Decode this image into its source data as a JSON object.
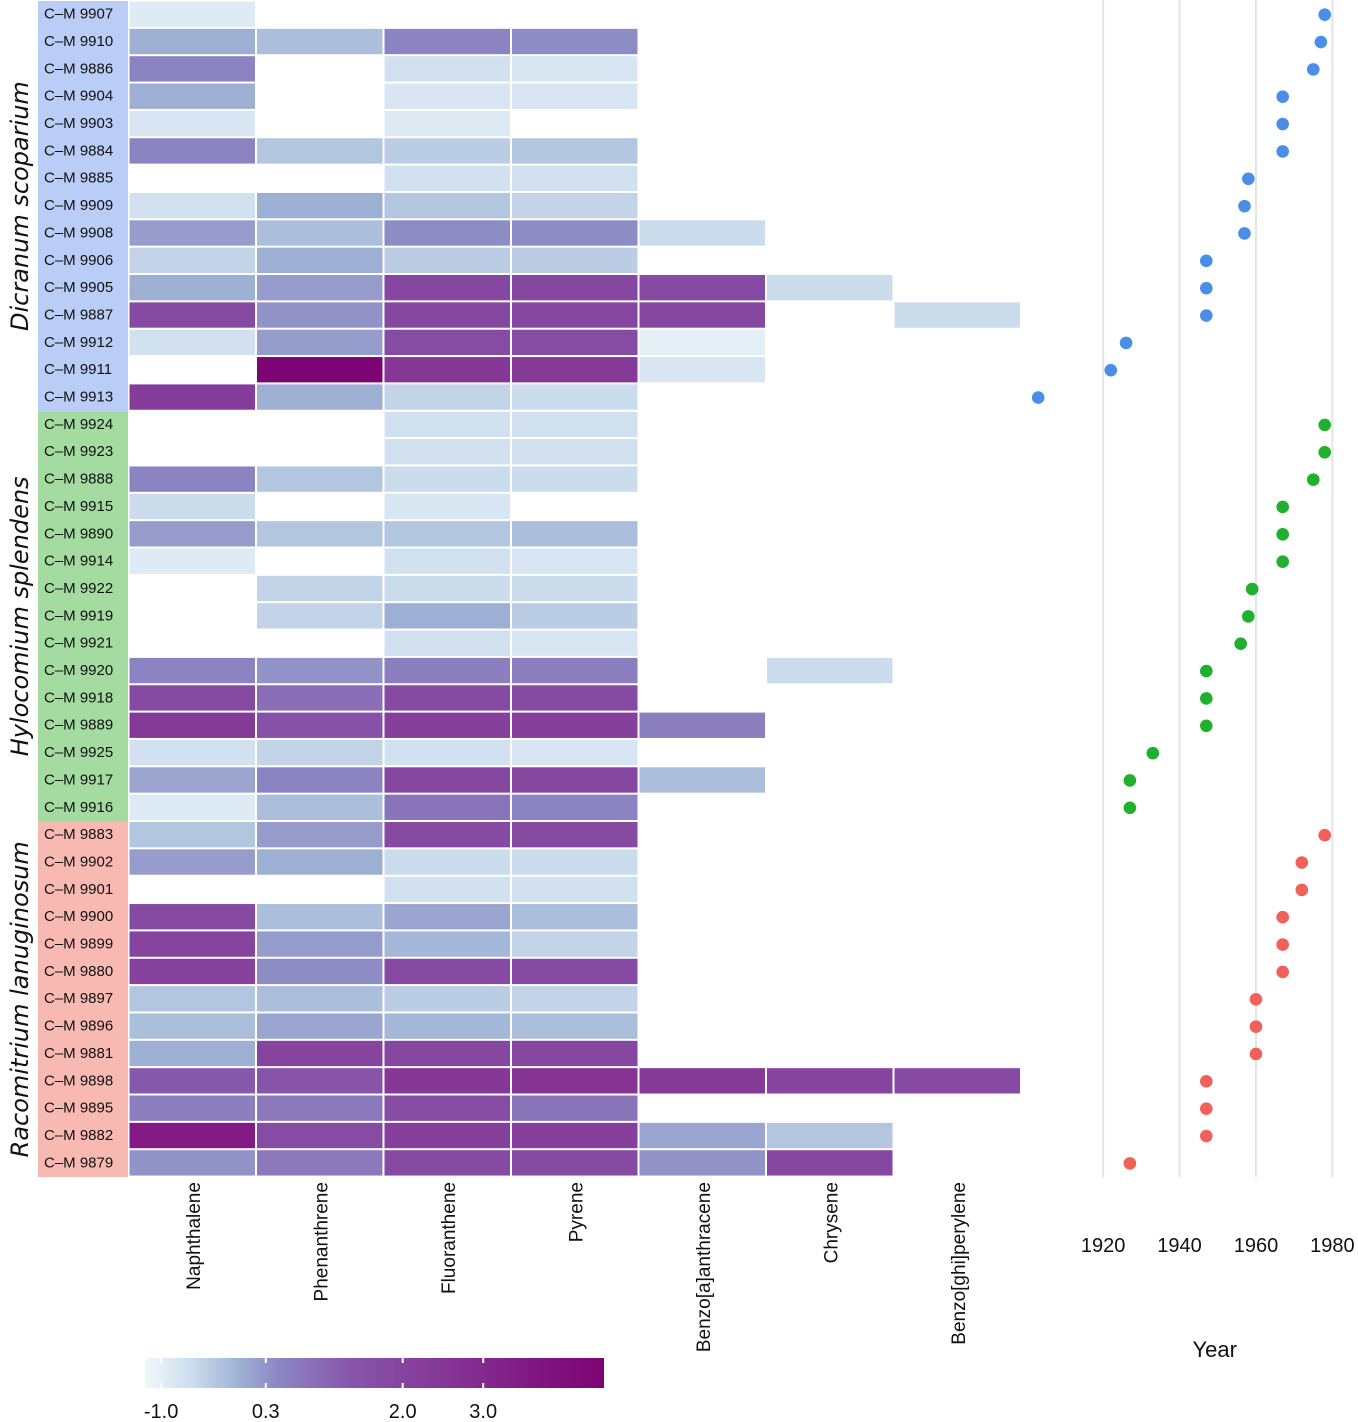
{
  "chart_data": {
    "type": "heatmap",
    "title": "",
    "compounds": [
      "Naphthalene",
      "Phenanthrene",
      "Fluoranthene",
      "Pyrene",
      "Benzo[a]anthracene",
      "Chrysene",
      "Benzo[ghi]perylene"
    ],
    "species": [
      {
        "name": "Dicranum scoparium",
        "color": "#b9cdf7",
        "dot_color": "#4a8ee8"
      },
      {
        "name": "Hylocomium splendens",
        "color": "#a3dba0",
        "dot_color": "#1fb02e"
      },
      {
        "name": "Racomitrium lanuginosum",
        "color": "#f8b9b3",
        "dot_color": "#ef6159"
      }
    ],
    "samples": [
      {
        "id": "C–M 9907",
        "species": 0,
        "year": 1978,
        "values": [
          -0.9,
          null,
          null,
          null,
          null,
          null,
          null
        ]
      },
      {
        "id": "C–M 9910",
        "species": 0,
        "year": 1977,
        "values": [
          0.0,
          -0.2,
          0.5,
          0.4,
          null,
          null,
          null
        ]
      },
      {
        "id": "C–M 9886",
        "species": 0,
        "year": 1975,
        "values": [
          0.5,
          null,
          -0.7,
          -0.8,
          null,
          null,
          null
        ]
      },
      {
        "id": "C–M 9904",
        "species": 0,
        "year": 1967,
        "values": [
          0.0,
          null,
          -0.8,
          -0.8,
          null,
          null,
          null
        ]
      },
      {
        "id": "C–M 9903",
        "species": 0,
        "year": 1967,
        "values": [
          -0.8,
          null,
          -0.9,
          null,
          null,
          null,
          null
        ]
      },
      {
        "id": "C–M 9884",
        "species": 0,
        "year": 1967,
        "values": [
          0.5,
          -0.3,
          -0.4,
          -0.3,
          null,
          null,
          null
        ]
      },
      {
        "id": "C–M 9885",
        "species": 0,
        "year": 1958,
        "values": [
          null,
          null,
          -0.7,
          -0.7,
          null,
          null,
          null
        ]
      },
      {
        "id": "C–M 9909",
        "species": 0,
        "year": 1957,
        "values": [
          -0.7,
          0.0,
          -0.3,
          -0.5,
          null,
          null,
          null
        ]
      },
      {
        "id": "C–M 9908",
        "species": 0,
        "year": 1957,
        "values": [
          0.2,
          -0.2,
          0.4,
          0.4,
          -0.6,
          null,
          null
        ]
      },
      {
        "id": "C–M 9906",
        "species": 0,
        "year": 1947,
        "values": [
          -0.5,
          0.0,
          -0.4,
          -0.4,
          null,
          null,
          null
        ]
      },
      {
        "id": "C–M 9905",
        "species": 0,
        "year": 1947,
        "values": [
          0.0,
          0.2,
          1.9,
          1.9,
          1.8,
          -0.6,
          null
        ]
      },
      {
        "id": "C–M 9887",
        "species": 0,
        "year": 1947,
        "values": [
          1.8,
          0.3,
          1.9,
          1.9,
          1.9,
          null,
          -0.6
        ]
      },
      {
        "id": "C–M 9912",
        "species": 0,
        "year": 1926,
        "values": [
          -0.7,
          0.2,
          1.7,
          1.7,
          -1.0,
          null,
          null
        ]
      },
      {
        "id": "C–M 9911",
        "species": 0,
        "year": 1922,
        "values": [
          null,
          4.5,
          2.5,
          2.4,
          -0.8,
          null,
          null
        ]
      },
      {
        "id": "C–M 9913",
        "species": 0,
        "year": 1903,
        "values": [
          2.3,
          0.0,
          -0.5,
          -0.6,
          null,
          null,
          null
        ]
      },
      {
        "id": "C–M 9924",
        "species": 1,
        "year": 1978,
        "values": [
          null,
          null,
          -0.7,
          -0.7,
          null,
          null,
          null
        ]
      },
      {
        "id": "C–M 9923",
        "species": 1,
        "year": 1978,
        "values": [
          null,
          null,
          -0.7,
          -0.7,
          null,
          null,
          null
        ]
      },
      {
        "id": "C–M 9888",
        "species": 1,
        "year": 1975,
        "values": [
          0.5,
          -0.3,
          -0.6,
          -0.6,
          null,
          null,
          null
        ]
      },
      {
        "id": "C–M 9915",
        "species": 1,
        "year": 1967,
        "values": [
          -0.6,
          null,
          -0.8,
          null,
          null,
          null,
          null
        ]
      },
      {
        "id": "C–M 9890",
        "species": 1,
        "year": 1967,
        "values": [
          0.2,
          -0.3,
          -0.3,
          -0.2,
          null,
          null,
          null
        ]
      },
      {
        "id": "C–M 9914",
        "species": 1,
        "year": 1967,
        "values": [
          -0.9,
          null,
          -0.7,
          -0.8,
          null,
          null,
          null
        ]
      },
      {
        "id": "C–M 9922",
        "species": 1,
        "year": 1959,
        "values": [
          null,
          -0.5,
          -0.6,
          -0.6,
          null,
          null,
          null
        ]
      },
      {
        "id": "C–M 9919",
        "species": 1,
        "year": 1958,
        "values": [
          null,
          -0.5,
          0.0,
          -0.4,
          null,
          null,
          null
        ]
      },
      {
        "id": "C–M 9921",
        "species": 1,
        "year": 1956,
        "values": [
          null,
          null,
          -0.7,
          -0.8,
          null,
          null,
          null
        ]
      },
      {
        "id": "C–M 9920",
        "species": 1,
        "year": 1947,
        "values": [
          0.5,
          0.3,
          0.6,
          0.6,
          null,
          -0.6,
          null
        ]
      },
      {
        "id": "C–M 9918",
        "species": 1,
        "year": 1947,
        "values": [
          1.8,
          0.9,
          1.8,
          1.8,
          null,
          null,
          null
        ]
      },
      {
        "id": "C–M 9889",
        "species": 1,
        "year": 1947,
        "values": [
          2.4,
          1.5,
          2.2,
          2.2,
          0.6,
          null,
          null
        ]
      },
      {
        "id": "C–M 9925",
        "species": 1,
        "year": 1933,
        "values": [
          -0.7,
          -0.5,
          -0.7,
          -0.8,
          null,
          null,
          null
        ]
      },
      {
        "id": "C–M 9917",
        "species": 1,
        "year": 1927,
        "values": [
          0.1,
          0.5,
          1.9,
          1.9,
          -0.2,
          null,
          null
        ]
      },
      {
        "id": "C–M 9916",
        "species": 1,
        "year": 1927,
        "values": [
          -0.9,
          -0.2,
          0.8,
          0.5,
          null,
          null,
          null
        ]
      },
      {
        "id": "C–M 9883",
        "species": 2,
        "year": 1978,
        "values": [
          -0.3,
          0.2,
          1.8,
          1.8,
          null,
          null,
          null
        ]
      },
      {
        "id": "C–M 9902",
        "species": 2,
        "year": 1972,
        "values": [
          0.2,
          0.0,
          -0.6,
          -0.6,
          null,
          null,
          null
        ]
      },
      {
        "id": "C–M 9901",
        "species": 2,
        "year": 1972,
        "values": [
          null,
          null,
          -0.7,
          -0.7,
          null,
          null,
          null
        ]
      },
      {
        "id": "C–M 9900",
        "species": 2,
        "year": 1967,
        "values": [
          1.8,
          -0.2,
          0.1,
          -0.2,
          null,
          null,
          null
        ]
      },
      {
        "id": "C–M 9899",
        "species": 2,
        "year": 1967,
        "values": [
          2.0,
          0.2,
          -0.1,
          -0.5,
          null,
          null,
          null
        ]
      },
      {
        "id": "C–M 9880",
        "species": 2,
        "year": 1967,
        "values": [
          2.1,
          0.4,
          1.8,
          1.8,
          null,
          null,
          null
        ]
      },
      {
        "id": "C–M 9897",
        "species": 2,
        "year": 1960,
        "values": [
          -0.3,
          -0.2,
          -0.4,
          -0.5,
          null,
          null,
          null
        ]
      },
      {
        "id": "C–M 9896",
        "species": 2,
        "year": 1960,
        "values": [
          -0.2,
          0.1,
          -0.1,
          -0.2,
          null,
          null,
          null
        ]
      },
      {
        "id": "C–M 9881",
        "species": 2,
        "year": 1960,
        "values": [
          0.0,
          2.0,
          1.9,
          1.9,
          null,
          null,
          null
        ]
      },
      {
        "id": "C–M 9898",
        "species": 2,
        "year": 1947,
        "values": [
          1.3,
          1.4,
          2.5,
          2.6,
          2.4,
          2.0,
          1.8
        ]
      },
      {
        "id": "C–M 9895",
        "species": 2,
        "year": 1947,
        "values": [
          0.6,
          0.7,
          1.7,
          0.8,
          null,
          null,
          null
        ]
      },
      {
        "id": "C–M 9882",
        "species": 2,
        "year": 1947,
        "values": [
          3.5,
          1.7,
          2.2,
          2.2,
          0.1,
          -0.3,
          null
        ]
      },
      {
        "id": "C–M 9879",
        "species": 2,
        "year": 1927,
        "values": [
          0.3,
          0.7,
          1.8,
          1.8,
          0.3,
          1.9,
          null
        ]
      }
    ],
    "colorscale": {
      "min": -1.2,
      "max": 4.5,
      "ticks": [
        -1.0,
        0.3,
        2.0,
        3.0
      ],
      "tick_labels": [
        "-1.0",
        "0.3",
        "2.0",
        "3.0"
      ]
    },
    "year_axis": {
      "title": "Year",
      "xlim": [
        1893,
        1982
      ],
      "ticks": [
        1920,
        1940,
        1960,
        1980
      ],
      "tick_labels": [
        "1920",
        "1940",
        "1960",
        "1980"
      ],
      "grid": true
    }
  }
}
